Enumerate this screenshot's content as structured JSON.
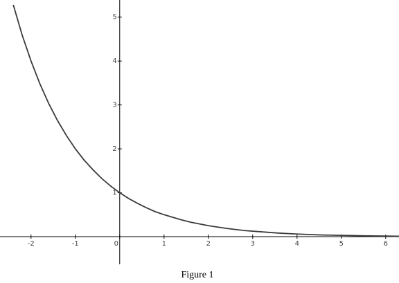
{
  "chart_data": {
    "type": "line",
    "caption": "Figure 1",
    "x": [
      -2.4,
      -2.2,
      -2.0,
      -1.8,
      -1.6,
      -1.4,
      -1.2,
      -1.0,
      -0.8,
      -0.6,
      -0.4,
      -0.2,
      0,
      0.2,
      0.4,
      0.6,
      0.8,
      1,
      1.2,
      1.4,
      1.6,
      1.8,
      2,
      2.4,
      2.8,
      3.2,
      3.6,
      4,
      4.5,
      5,
      5.5,
      6.3
    ],
    "series": [
      {
        "color": "#3a3a3a",
        "values": [
          5.28,
          4.59,
          4,
          3.48,
          3.03,
          2.64,
          2.3,
          2,
          1.74,
          1.52,
          1.32,
          1.15,
          1,
          0.87,
          0.76,
          0.66,
          0.57,
          0.5,
          0.44,
          0.38,
          0.33,
          0.29,
          0.25,
          0.19,
          0.14,
          0.11,
          0.08,
          0.06,
          0.04,
          0.03,
          0.02,
          0.01
        ]
      }
    ],
    "xlim": [
      -2.7,
      6.3
    ],
    "ylim": [
      -0.63,
      5.39
    ],
    "xticks": [
      -2,
      -1,
      0,
      1,
      2,
      3,
      4,
      5,
      6
    ],
    "yticks": [
      1,
      2,
      3,
      4,
      5
    ]
  }
}
